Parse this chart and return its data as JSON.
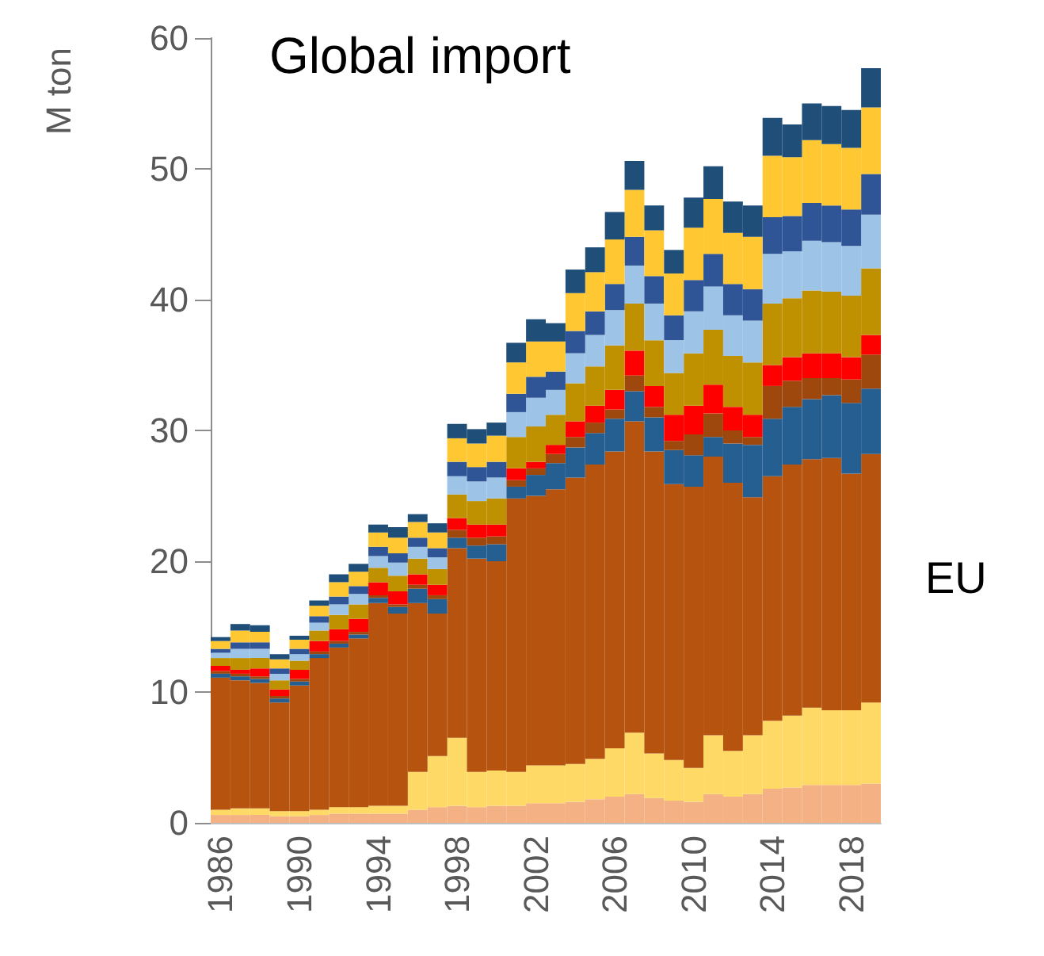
{
  "chart_data": {
    "type": "bar",
    "stacked": true,
    "title": "Global import",
    "ylabel": "M ton",
    "categories": [
      "1986",
      null,
      null,
      null,
      "1990",
      null,
      null,
      null,
      "1994",
      null,
      null,
      null,
      "1998",
      null,
      null,
      null,
      "2002",
      null,
      null,
      null,
      "2006",
      null,
      null,
      null,
      "2010",
      null,
      null,
      null,
      "2014",
      null,
      null,
      null,
      "2018",
      null
    ],
    "ylim": [
      0,
      60
    ],
    "yticks": [
      0,
      10,
      20,
      30,
      40,
      50,
      60
    ],
    "grid": false,
    "legend": false,
    "series": [
      {
        "color": "#f4b183",
        "values": [
          0.6,
          0.6,
          0.6,
          0.5,
          0.5,
          0.6,
          0.7,
          0.7,
          0.7,
          0.7,
          1.0,
          1.2,
          1.3,
          1.2,
          1.3,
          1.3,
          1.5,
          1.5,
          1.6,
          1.8,
          2.0,
          2.2,
          1.9,
          1.7,
          1.6,
          2.2,
          2.0,
          2.2,
          2.6,
          2.7,
          2.9,
          2.9,
          2.9,
          3.0
        ]
      },
      {
        "color": "#ffd966",
        "values": [
          0.4,
          0.5,
          0.5,
          0.4,
          0.4,
          0.4,
          0.5,
          0.5,
          0.6,
          0.6,
          2.9,
          3.9,
          5.2,
          2.7,
          2.7,
          2.6,
          2.9,
          2.9,
          2.9,
          3.1,
          3.7,
          4.7,
          3.4,
          3.1,
          2.6,
          4.5,
          3.5,
          4.5,
          5.2,
          5.5,
          5.9,
          5.7,
          5.7,
          6.2
        ]
      },
      {
        "name": "EU",
        "color": "#b5530f",
        "values": [
          10.1,
          9.8,
          9.6,
          8.3,
          9.6,
          11.6,
          12.2,
          12.9,
          15.5,
          14.7,
          12.9,
          10.9,
          14.5,
          16.3,
          16.0,
          20.9,
          20.6,
          21.1,
          21.9,
          22.5,
          22.7,
          23.8,
          23.1,
          21.1,
          21.5,
          21.3,
          20.5,
          18.2,
          18.7,
          19.2,
          19.0,
          19.3,
          18.1,
          19.0
        ]
      },
      {
        "color": "#255e91",
        "values": [
          0.3,
          0.3,
          0.3,
          0.3,
          0.3,
          0.3,
          0.3,
          0.3,
          0.4,
          0.5,
          1.1,
          1.1,
          0.8,
          1.0,
          1.3,
          0.9,
          1.6,
          2.0,
          2.3,
          2.4,
          2.5,
          2.3,
          2.6,
          2.6,
          2.4,
          1.5,
          3.0,
          4.0,
          4.4,
          4.4,
          4.6,
          4.8,
          5.4,
          5.0
        ]
      },
      {
        "color": "#9e480e",
        "values": [
          0.2,
          0.2,
          0.2,
          0.2,
          0.2,
          0.2,
          0.2,
          0.2,
          0.2,
          0.2,
          0.3,
          0.3,
          0.6,
          0.6,
          0.6,
          0.5,
          0.5,
          0.7,
          0.8,
          0.8,
          0.7,
          1.2,
          0.8,
          0.7,
          1.6,
          1.8,
          1.0,
          0.6,
          2.5,
          2.0,
          1.6,
          1.3,
          1.8,
          2.6
        ]
      },
      {
        "color": "#ff0000",
        "values": [
          0.4,
          0.3,
          0.6,
          0.5,
          0.7,
          0.8,
          0.9,
          1.0,
          1.0,
          1.0,
          0.8,
          0.8,
          0.9,
          1.0,
          0.9,
          0.9,
          0.5,
          0.7,
          1.2,
          1.3,
          1.5,
          1.9,
          1.6,
          2.0,
          2.2,
          2.2,
          1.8,
          1.7,
          1.6,
          1.8,
          1.9,
          1.9,
          1.7,
          1.5
        ]
      },
      {
        "color": "#bf9000",
        "values": [
          0.6,
          0.9,
          0.8,
          0.7,
          0.7,
          0.8,
          1.1,
          1.1,
          1.1,
          1.2,
          1.2,
          1.2,
          1.8,
          1.8,
          2.0,
          2.4,
          2.7,
          2.3,
          2.9,
          3.0,
          3.4,
          3.6,
          3.5,
          3.2,
          4.0,
          4.2,
          3.9,
          4.0,
          4.7,
          4.5,
          4.8,
          4.7,
          4.7,
          5.1
        ]
      },
      {
        "color": "#9dc3e6",
        "values": [
          0.4,
          0.7,
          0.7,
          0.5,
          0.5,
          0.6,
          0.8,
          0.8,
          0.9,
          1.0,
          0.9,
          0.9,
          1.4,
          1.5,
          1.6,
          1.9,
          2.2,
          1.9,
          2.3,
          2.4,
          2.7,
          2.9,
          2.8,
          2.5,
          3.2,
          3.3,
          3.1,
          3.2,
          3.8,
          3.6,
          3.8,
          3.8,
          3.8,
          4.1
        ]
      },
      {
        "color": "#2f5597",
        "values": [
          0.3,
          0.5,
          0.5,
          0.4,
          0.4,
          0.5,
          0.6,
          0.6,
          0.7,
          0.7,
          0.7,
          0.7,
          1.1,
          1.1,
          1.2,
          1.4,
          1.6,
          1.4,
          1.7,
          1.8,
          2.0,
          2.2,
          2.1,
          1.9,
          2.4,
          2.5,
          2.4,
          2.4,
          2.8,
          2.7,
          2.9,
          2.8,
          2.8,
          3.1
        ]
      },
      {
        "color": "#ffc832",
        "values": [
          0.6,
          0.9,
          0.8,
          0.7,
          0.7,
          0.8,
          1.1,
          1.1,
          1.1,
          1.2,
          1.2,
          1.2,
          1.8,
          1.8,
          2.0,
          2.4,
          2.7,
          2.3,
          2.9,
          3.0,
          3.4,
          3.6,
          3.5,
          3.2,
          4.0,
          4.2,
          3.9,
          4.0,
          4.7,
          4.5,
          4.8,
          4.7,
          4.7,
          5.1
        ]
      },
      {
        "color": "#1f4e79",
        "values": [
          0.3,
          0.5,
          0.5,
          0.4,
          0.3,
          0.4,
          0.6,
          0.6,
          0.6,
          0.8,
          0.6,
          0.7,
          1.1,
          1.1,
          1.0,
          1.5,
          1.7,
          1.4,
          1.8,
          1.9,
          2.1,
          2.2,
          1.9,
          1.8,
          2.3,
          2.5,
          2.4,
          2.4,
          2.9,
          2.5,
          2.8,
          2.9,
          2.9,
          3.0
        ]
      }
    ]
  }
}
